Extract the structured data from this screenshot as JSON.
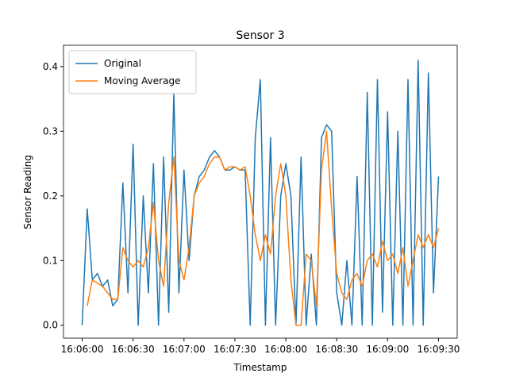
{
  "chart_data": {
    "type": "line",
    "title": "Sensor 3",
    "x_label": "Timestamp",
    "y_label": "Sensor Reading",
    "x": [
      "16:06:00",
      "16:06:03",
      "16:06:06",
      "16:06:09",
      "16:06:12",
      "16:06:15",
      "16:06:18",
      "16:06:21",
      "16:06:24",
      "16:06:27",
      "16:06:30",
      "16:06:33",
      "16:06:36",
      "16:06:39",
      "16:06:42",
      "16:06:45",
      "16:06:48",
      "16:06:51",
      "16:06:54",
      "16:06:57",
      "16:07:00",
      "16:07:03",
      "16:07:06",
      "16:07:09",
      "16:07:12",
      "16:07:15",
      "16:07:18",
      "16:07:21",
      "16:07:24",
      "16:07:27",
      "16:07:30",
      "16:07:33",
      "16:07:36",
      "16:07:39",
      "16:07:42",
      "16:07:45",
      "16:07:48",
      "16:07:51",
      "16:07:54",
      "16:07:57",
      "16:08:00",
      "16:08:03",
      "16:08:06",
      "16:08:09",
      "16:08:12",
      "16:08:15",
      "16:08:18",
      "16:08:21",
      "16:08:24",
      "16:08:27",
      "16:08:30",
      "16:08:33",
      "16:08:36",
      "16:08:39",
      "16:08:42",
      "16:08:45",
      "16:08:48",
      "16:08:51",
      "16:08:54",
      "16:08:57",
      "16:09:00",
      "16:09:03",
      "16:09:06",
      "16:09:09",
      "16:09:12",
      "16:09:15",
      "16:09:18",
      "16:09:21",
      "16:09:24",
      "16:09:27",
      "16:09:30"
    ],
    "series": [
      {
        "name": "Original",
        "color": "#1f77b4",
        "values": [
          0.0,
          0.18,
          0.07,
          0.08,
          0.06,
          0.07,
          0.03,
          0.04,
          0.22,
          0.05,
          0.28,
          0.0,
          0.2,
          0.05,
          0.25,
          0.0,
          0.26,
          0.02,
          0.36,
          0.05,
          0.24,
          0.1,
          0.2,
          0.23,
          0.24,
          0.26,
          0.27,
          0.26,
          0.24,
          0.24,
          0.245,
          0.24,
          0.24,
          0.0,
          0.29,
          0.38,
          0.0,
          0.29,
          0.0,
          0.2,
          0.25,
          0.2,
          0.0,
          0.26,
          0.0,
          0.11,
          0.0,
          0.29,
          0.31,
          0.3,
          0.05,
          0.0,
          0.1,
          0.0,
          0.23,
          0.0,
          0.36,
          0.0,
          0.38,
          0.02,
          0.33,
          0.0,
          0.3,
          0.0,
          0.38,
          0.0,
          0.41,
          0.0,
          0.39,
          0.05,
          0.23
        ]
      },
      {
        "name": "Moving Average",
        "color": "#ff7f0e",
        "values": [
          null,
          0.03,
          0.07,
          0.065,
          0.06,
          0.05,
          0.04,
          0.04,
          0.12,
          0.1,
          0.09,
          0.1,
          0.09,
          0.12,
          0.19,
          0.1,
          0.06,
          0.19,
          0.26,
          0.1,
          0.07,
          0.12,
          0.2,
          0.22,
          0.23,
          0.25,
          0.26,
          0.26,
          0.24,
          0.245,
          0.245,
          0.24,
          0.245,
          0.2,
          0.14,
          0.1,
          0.14,
          0.11,
          0.2,
          0.25,
          0.2,
          0.07,
          0.0,
          0.0,
          0.11,
          0.1,
          0.03,
          0.24,
          0.3,
          0.18,
          0.08,
          0.05,
          0.04,
          0.07,
          0.08,
          0.06,
          0.1,
          0.11,
          0.09,
          0.13,
          0.1,
          0.11,
          0.08,
          0.12,
          0.06,
          0.1,
          0.14,
          0.12,
          0.14,
          0.12,
          0.15
        ]
      }
    ],
    "xlim": [
      "16:05:49",
      "16:09:41"
    ],
    "xticks": [
      "16:06:00",
      "16:06:30",
      "16:07:00",
      "16:07:30",
      "16:08:00",
      "16:08:30",
      "16:09:00",
      "16:09:30"
    ],
    "ylim": [
      -0.02,
      0.433
    ],
    "yticks": [
      {
        "value": 0,
        "label": "0.0"
      },
      0.1,
      0.2,
      0.3,
      0.4
    ],
    "legend": "upper left",
    "grid": false
  }
}
